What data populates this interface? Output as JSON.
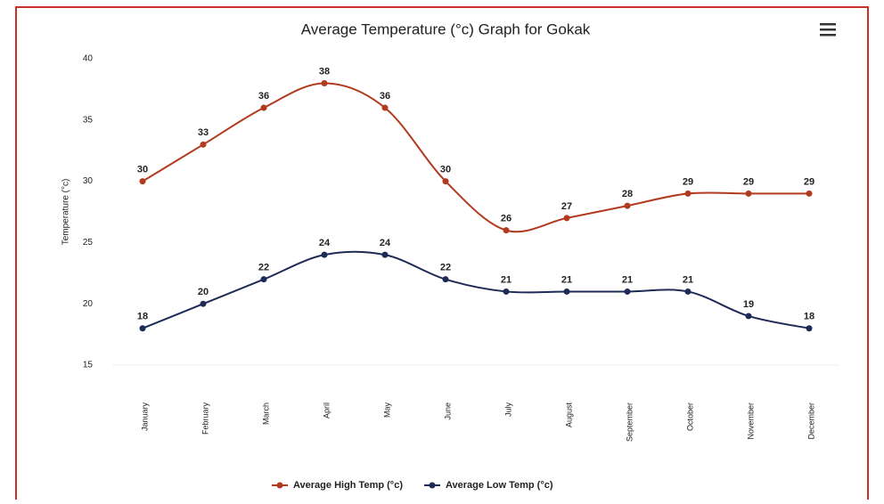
{
  "chart_data": {
    "type": "line",
    "title": "Average Temperature (°c) Graph for Gokak",
    "y_label": "Temperature (°c)",
    "categories": [
      "January",
      "February",
      "March",
      "April",
      "May",
      "June",
      "July",
      "August",
      "September",
      "October",
      "November",
      "December"
    ],
    "series": [
      {
        "name": "Average High Temp (°c)",
        "color": "#b23a1f",
        "values": [
          30,
          33,
          36,
          38,
          36,
          30,
          26,
          27,
          28,
          29,
          29,
          29
        ]
      },
      {
        "name": "Average Low Temp (°c)",
        "color": "#1f2b57",
        "values": [
          18,
          20,
          22,
          24,
          24,
          22,
          21,
          21,
          21,
          21,
          19,
          18
        ]
      }
    ],
    "ylim": [
      15,
      40
    ],
    "yticks": [
      15,
      20,
      25,
      30,
      35,
      40
    ],
    "grid": false,
    "smooth": true,
    "legend": "bottom"
  }
}
